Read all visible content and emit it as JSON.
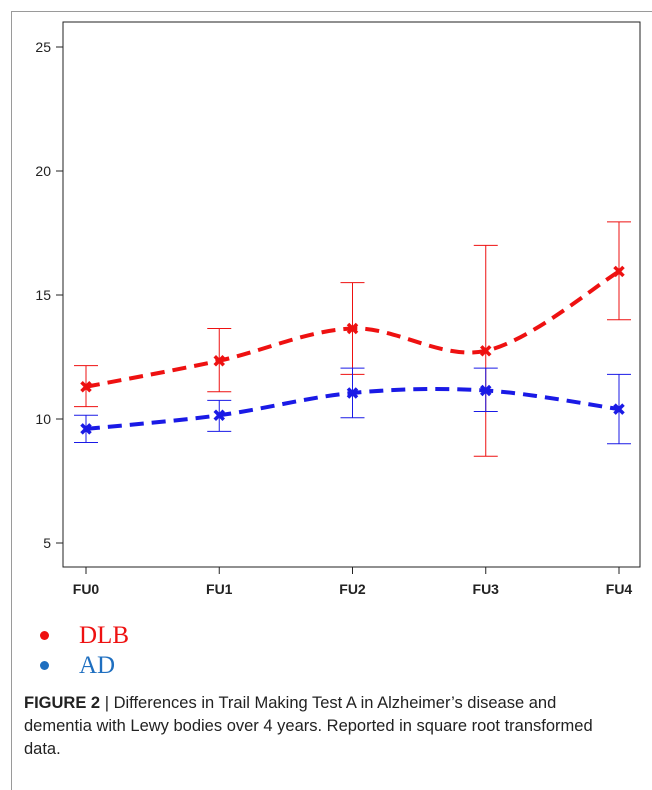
{
  "chart_data": {
    "type": "line",
    "categories": [
      "FU0",
      "FU1",
      "FU2",
      "FU3",
      "FU4"
    ],
    "ylim": [
      4.2,
      26.5
    ],
    "yticks": [
      5,
      10,
      15,
      20,
      25
    ],
    "series": [
      {
        "name": "DLB",
        "color": "#ee1111",
        "values": [
          11.3,
          12.35,
          13.65,
          12.75,
          15.95
        ],
        "err_low": [
          10.5,
          11.1,
          11.8,
          8.5,
          14.0
        ],
        "err_high": [
          12.15,
          13.65,
          15.5,
          17.0,
          17.95
        ]
      },
      {
        "name": "AD",
        "color": "#1a1ae6",
        "values": [
          9.6,
          10.15,
          11.05,
          11.15,
          10.4
        ],
        "err_low": [
          9.05,
          9.5,
          10.05,
          10.3,
          9.0
        ],
        "err_high": [
          10.15,
          10.75,
          12.05,
          12.05,
          11.8
        ]
      }
    ],
    "grid": false,
    "legend": "bottom-left"
  },
  "legend": [
    {
      "label": "DLB",
      "color": "#ee1111"
    },
    {
      "label": "AD",
      "color": "#1f6fc0"
    }
  ],
  "caption": {
    "label": "FIGURE 2",
    "separator": " | ",
    "text": "Differences in Trail Making Test A in Alzheimer’s disease and dementia with Lewy bodies over 4 years. Reported in square root transformed data."
  }
}
